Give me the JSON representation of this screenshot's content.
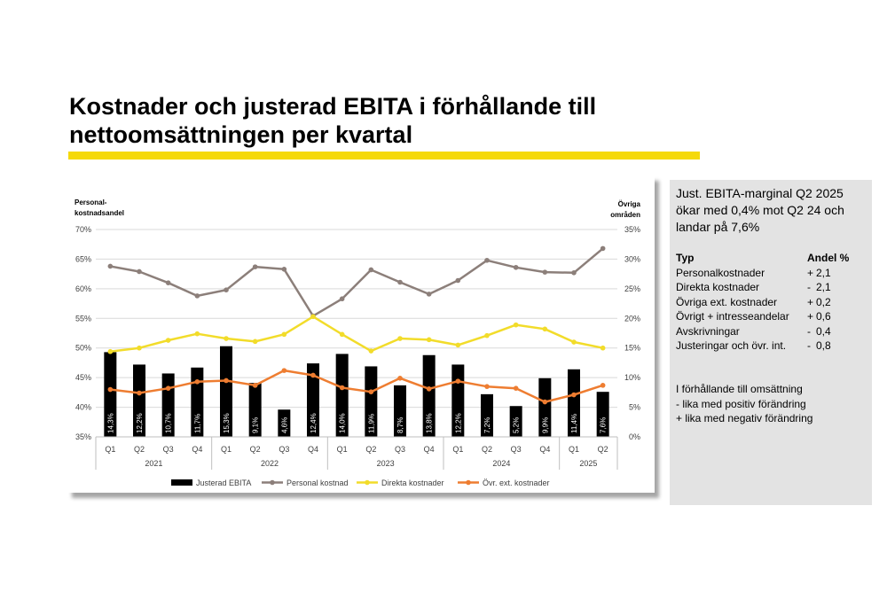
{
  "slide": {
    "title_line1": "Kostnader och justerad EBITA i förhållande till",
    "title_line2": "nettoomsättningen per kvartal",
    "accent_color": "#f5d90a"
  },
  "chart_data": {
    "type": "bar+line",
    "left_axis_title": [
      "Personal-",
      "kostnadsandel"
    ],
    "right_axis_title": [
      "Övriga",
      "områden"
    ],
    "left_axis": {
      "min": 35,
      "max": 70,
      "step": 5,
      "unit": "%"
    },
    "right_axis": {
      "min": 0,
      "max": 35,
      "step": 5,
      "unit": "%"
    },
    "quarters": [
      "Q1",
      "Q2",
      "Q3",
      "Q4",
      "Q1",
      "Q2",
      "Q3",
      "Q4",
      "Q1",
      "Q2",
      "Q3",
      "Q4",
      "Q1",
      "Q2",
      "Q3",
      "Q4",
      "Q1",
      "Q2"
    ],
    "years": [
      {
        "label": "2021",
        "count": 4
      },
      {
        "label": "2022",
        "count": 4
      },
      {
        "label": "2023",
        "count": 4
      },
      {
        "label": "2024",
        "count": 4
      },
      {
        "label": "2025",
        "count": 2
      }
    ],
    "series": [
      {
        "name": "Justerad EBITA",
        "kind": "bar",
        "axis": "right",
        "color": "#000000",
        "values": [
          14.3,
          12.2,
          10.7,
          11.7,
          15.3,
          9.1,
          4.6,
          12.4,
          14.0,
          11.9,
          8.7,
          13.8,
          12.2,
          7.2,
          5.2,
          9.9,
          11.4,
          7.6
        ],
        "labels": [
          "14,3%",
          "12,2%",
          "10,7%",
          "11,7%",
          "15,3%",
          "9,1%",
          "4,6%",
          "12,4%",
          "14,0%",
          "11,9%",
          "8,7%",
          "13,8%",
          "12,2%",
          "7,2%",
          "5,2%",
          "9,9%",
          "11,4%",
          "7,6%"
        ]
      },
      {
        "name": "Personal kostnad",
        "kind": "line",
        "axis": "left",
        "color": "#8c7f7a",
        "values": [
          63.8,
          62.9,
          61.0,
          58.8,
          59.8,
          63.7,
          63.3,
          55.4,
          58.3,
          63.2,
          61.1,
          59.1,
          61.4,
          64.8,
          63.6,
          62.8,
          62.7,
          66.8
        ]
      },
      {
        "name": "Direkta kostnader",
        "kind": "line",
        "axis": "right",
        "color": "#f2dc2a",
        "values": [
          14.4,
          15.0,
          16.3,
          17.4,
          16.6,
          16.1,
          17.3,
          20.3,
          17.3,
          14.5,
          16.6,
          16.4,
          15.5,
          17.1,
          18.9,
          18.2,
          16.0,
          15.0
        ]
      },
      {
        "name": "Övr. ext. kostnader",
        "kind": "line",
        "axis": "right",
        "color": "#ee7d31",
        "values": [
          8.0,
          7.4,
          8.2,
          9.3,
          9.5,
          8.7,
          11.2,
          10.4,
          8.3,
          7.6,
          9.9,
          8.1,
          9.4,
          8.5,
          8.2,
          5.9,
          7.1,
          8.7
        ]
      }
    ],
    "legend_position": "bottom",
    "grid": "horizontal"
  },
  "info": {
    "headline": "Just. EBITA-marginal Q2 2025 ökar med 0,4% mot Q2 24 och landar på 7,6%",
    "table_header": [
      "Typ",
      "Andel %"
    ],
    "rows": [
      [
        "Personalkostnader",
        "+",
        "2,1"
      ],
      [
        "Direkta kostnader",
        "-",
        "2,1"
      ],
      [
        "Övriga ext. kostnader",
        "+",
        "0,2"
      ],
      [
        "Övrigt + intresseandelar",
        "+",
        "0,6"
      ],
      [
        "Avskrivningar",
        "-",
        "0,4"
      ],
      [
        "Justeringar och övr. int.",
        "-",
        "0,8"
      ]
    ],
    "note_lines": [
      "I förhållande till omsättning",
      "- lika med positiv förändring",
      "+ lika med negativ förändring"
    ]
  }
}
